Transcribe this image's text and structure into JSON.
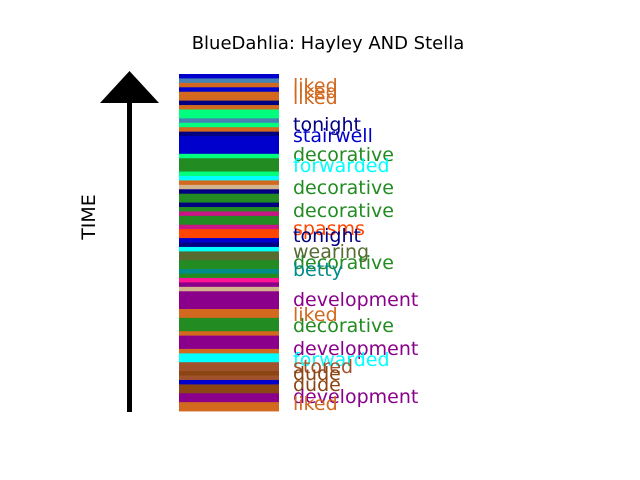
{
  "chart_data": {
    "type": "bar",
    "title": "BlueDahlia: Hayley AND Stella",
    "ylabel": "TIME",
    "colors": {
      "liked": "#d2691e",
      "tonight": "#000080",
      "stairwell": "#0000cd",
      "decorative": "#228b22",
      "forwarded": "#00ffff",
      "spasms": "#ff4500",
      "wearing": "#556b2f",
      "betty": "#008b8b",
      "development": "#8b008b",
      "stored": "#a0522d",
      "dude": "#8b4513",
      "other_a": "#00ff7f",
      "other_b": "#ff1493",
      "other_c": "#c71585",
      "other_d": "#4682b4",
      "other_e": "#d2b48c"
    },
    "stripes": [
      "stairwell",
      "other_d",
      "liked",
      "stairwell",
      "liked",
      "liked",
      "tonight",
      "liked",
      "other_a",
      "other_a",
      "other_d",
      "other_a",
      "liked",
      "tonight",
      "stairwell",
      "stairwell",
      "stairwell",
      "stairwell",
      "other_a",
      "decorative",
      "decorative",
      "decorative",
      "other_a",
      "forwarded",
      "liked",
      "other_e",
      "tonight",
      "decorative",
      "decorative",
      "tonight",
      "decorative",
      "other_c",
      "decorative",
      "decorative",
      "other_c",
      "spasms",
      "spasms",
      "stairwell",
      "tonight",
      "forwarded",
      "wearing",
      "wearing",
      "decorative",
      "decorative",
      "betty",
      "decorative",
      "other_b",
      "development",
      "other_e",
      "development",
      "development",
      "development",
      "development",
      "liked",
      "liked",
      "decorative",
      "decorative",
      "decorative",
      "liked",
      "development",
      "development",
      "development",
      "liked",
      "forwarded",
      "forwarded",
      "stored",
      "stored",
      "dude",
      "stored",
      "stairwell",
      "dude",
      "dude",
      "development",
      "development",
      "liked",
      "liked"
    ],
    "words": [
      {
        "text": "liked",
        "color": "liked"
      },
      {
        "text": "liked",
        "color": "liked"
      },
      {
        "text": "liked",
        "color": "liked"
      },
      {
        "text": "tonight",
        "color": "tonight"
      },
      {
        "text": "stairwell",
        "color": "stairwell"
      },
      {
        "text": "decorative",
        "color": "decorative"
      },
      {
        "text": "forwarded",
        "color": "forwarded"
      },
      {
        "text": "decorative",
        "color": "decorative"
      },
      {
        "text": "decorative",
        "color": "decorative"
      },
      {
        "text": "spasms",
        "color": "spasms"
      },
      {
        "text": "tonight",
        "color": "tonight"
      },
      {
        "text": "wearing",
        "color": "wearing"
      },
      {
        "text": "decorative",
        "color": "decorative"
      },
      {
        "text": "betty",
        "color": "betty"
      },
      {
        "text": "development",
        "color": "development"
      },
      {
        "text": "liked",
        "color": "liked"
      },
      {
        "text": "decorative",
        "color": "decorative"
      },
      {
        "text": "development",
        "color": "development"
      },
      {
        "text": "forwarded",
        "color": "forwarded"
      },
      {
        "text": "stored",
        "color": "stored"
      },
      {
        "text": "dude",
        "color": "dude"
      },
      {
        "text": "dude",
        "color": "dude"
      },
      {
        "text": "development",
        "color": "development"
      },
      {
        "text": "liked",
        "color": "liked"
      }
    ]
  }
}
